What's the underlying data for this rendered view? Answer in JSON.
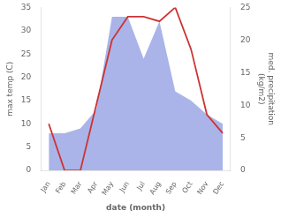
{
  "chart_data": {
    "type": "line",
    "categories": [
      "Jan",
      "Feb",
      "Mar",
      "Apr",
      "May",
      "Jun",
      "Jul",
      "Aug",
      "Sep",
      "Oct",
      "Nov",
      "Dec"
    ],
    "series": [
      {
        "type": "area",
        "color": "#aab4e8",
        "values": [
          8,
          8,
          9,
          13,
          33,
          33,
          24,
          32,
          17,
          15,
          12,
          10
        ]
      },
      {
        "type": "line",
        "color": "#cc3333",
        "values": [
          10,
          0,
          0,
          14,
          28,
          33,
          33,
          32,
          35,
          26,
          12,
          8
        ]
      }
    ],
    "xlabel": "date (month)",
    "ylabel": "max temp (C)",
    "y2label": "med. precipitation\n(kg/m2)",
    "ylim": [
      0,
      35
    ],
    "yticks": [
      0,
      5,
      10,
      15,
      20,
      25,
      30,
      35
    ],
    "y2lim": [
      0,
      25
    ],
    "y2ticks": [
      0,
      5,
      10,
      15,
      20,
      25
    ],
    "grid": false
  }
}
